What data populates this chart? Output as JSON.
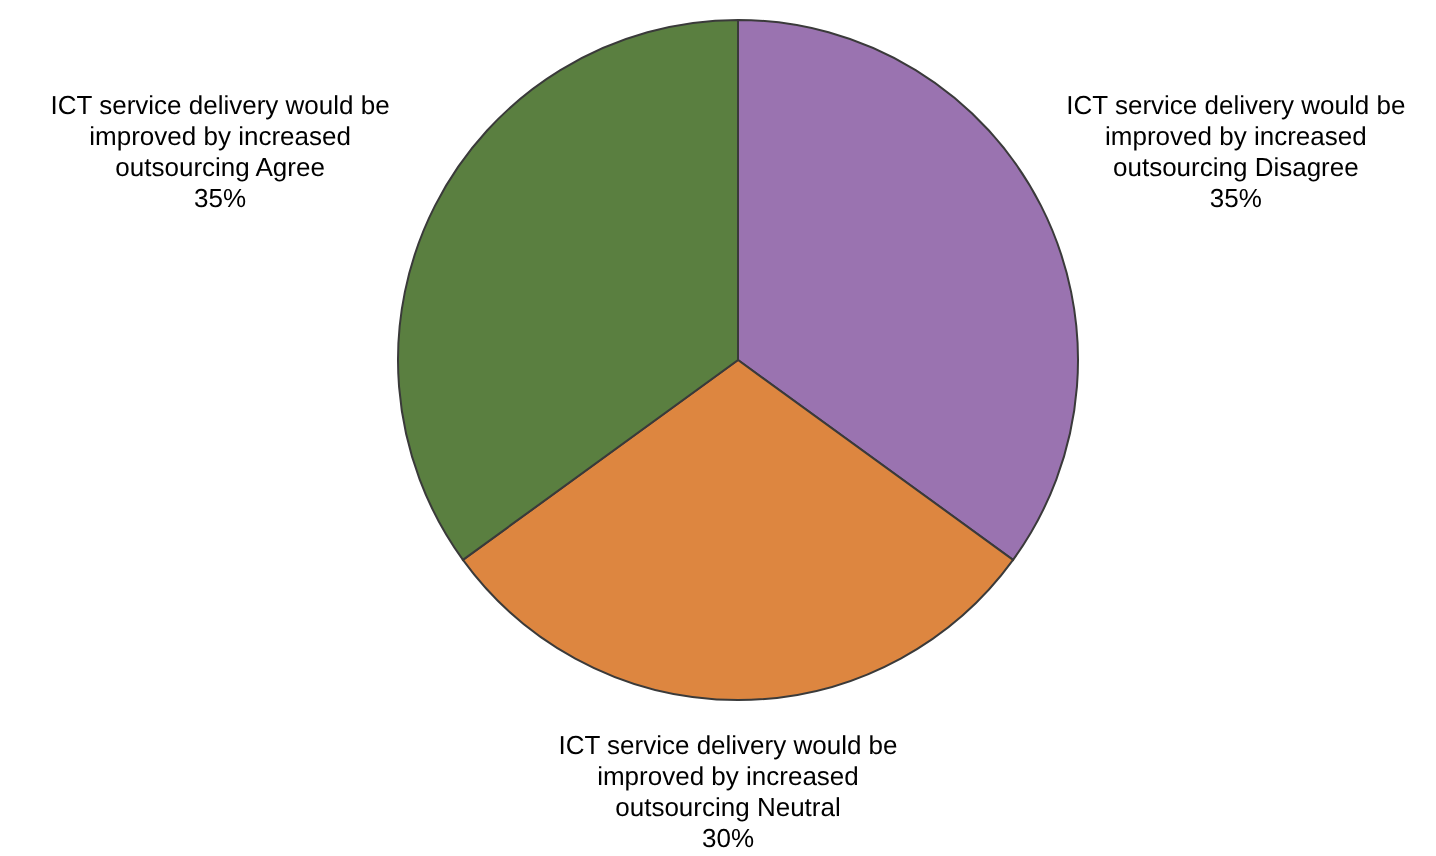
{
  "chart_data": {
    "type": "pie",
    "categories": [
      "ICT service delivery would be improved by increased outsourcing Disagree",
      "ICT service delivery would be improved by increased outsourcing Neutral",
      "ICT service delivery would be improved by increased outsourcing Agree"
    ],
    "values": [
      35,
      30,
      35
    ],
    "value_labels": [
      "35%",
      "30%",
      "35%"
    ],
    "colors": [
      "#9a73b0",
      "#dd8640",
      "#5a7f40"
    ],
    "legend": false
  }
}
